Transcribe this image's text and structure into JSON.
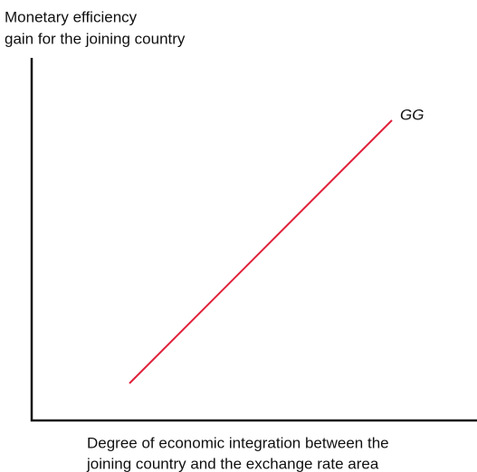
{
  "y_axis": {
    "label_lines": [
      "Monetary efficiency",
      "gain for the joining country"
    ]
  },
  "x_axis": {
    "label_lines": [
      "Degree of economic integration between the",
      "joining country and the exchange rate area"
    ]
  },
  "curve": {
    "label": "GG"
  }
}
